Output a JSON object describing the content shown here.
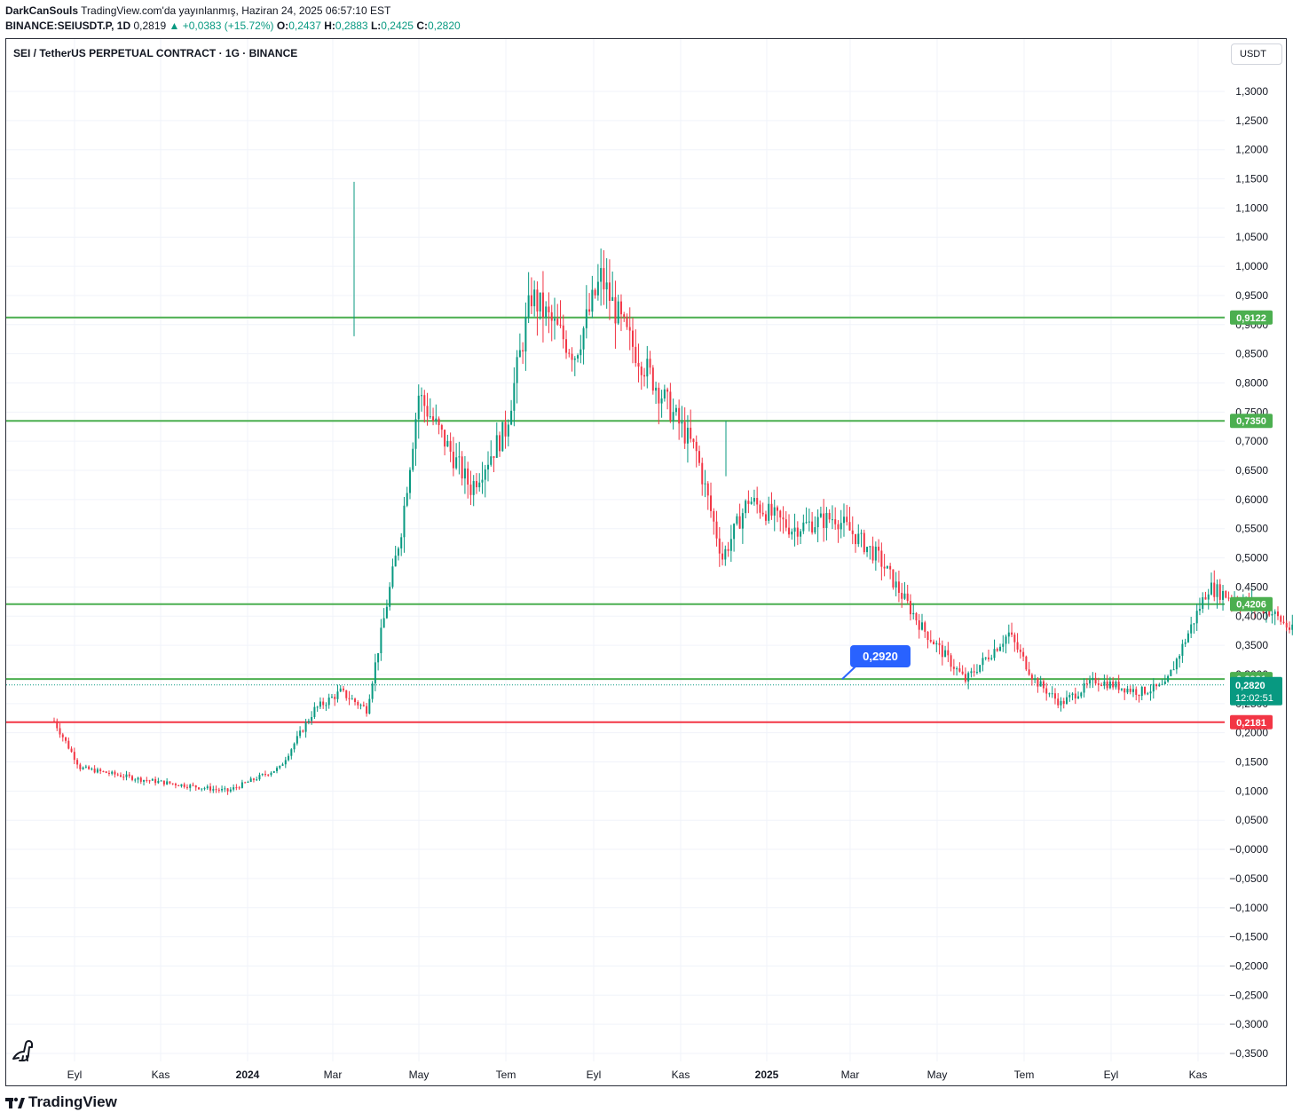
{
  "header": {
    "author": "DarkCanSouls",
    "published": "TradingView.com'da yayınlanmış, Haziran 24, 2025 06:57:10 EST",
    "symbol_line": "BINANCE:SEIUSDT.P, 1D",
    "price": "0,2819",
    "change": "▲ +0,0383 (+15.72%)",
    "o_label": "O:",
    "o": "0,2437",
    "h_label": "H:",
    "h": "0,2883",
    "l_label": "L:",
    "l": "0,2425",
    "c_label": "C:",
    "c": "0,2820"
  },
  "legend": {
    "title": "SEI / TetherUS PERPETUAL CONTRACT · 1G · BINANCE"
  },
  "currency_button": "USDT",
  "footer": {
    "brand": "TradingView"
  },
  "colors": {
    "up": "#089981",
    "down": "#f23645",
    "level_green": "#4caf50",
    "level_red": "#f23645",
    "callout": "#2962ff",
    "projection": "#9598a1"
  },
  "chart_data": {
    "type": "candlestick",
    "title": "SEI / TetherUS PERPETUAL CONTRACT · 1G · BINANCE",
    "ylim": [
      -0.35,
      1.3
    ],
    "y_ticks": [
      {
        "v": 1.3,
        "label": "1,3000"
      },
      {
        "v": 1.25,
        "label": "1,2500"
      },
      {
        "v": 1.2,
        "label": "1,2000"
      },
      {
        "v": 1.15,
        "label": "1,1500"
      },
      {
        "v": 1.1,
        "label": "1,1000"
      },
      {
        "v": 1.05,
        "label": "1,0500"
      },
      {
        "v": 1.0,
        "label": "1,0000"
      },
      {
        "v": 0.95,
        "label": "0,9500"
      },
      {
        "v": 0.9,
        "label": "0,9000"
      },
      {
        "v": 0.85,
        "label": "0,8500"
      },
      {
        "v": 0.8,
        "label": "0,8000"
      },
      {
        "v": 0.75,
        "label": "0,7500"
      },
      {
        "v": 0.7,
        "label": "0,7000"
      },
      {
        "v": 0.65,
        "label": "0,6500"
      },
      {
        "v": 0.6,
        "label": "0,6000"
      },
      {
        "v": 0.55,
        "label": "0,5500"
      },
      {
        "v": 0.5,
        "label": "0,5000"
      },
      {
        "v": 0.45,
        "label": "0,4500"
      },
      {
        "v": 0.4,
        "label": "0,4000"
      },
      {
        "v": 0.35,
        "label": "0,3500"
      },
      {
        "v": 0.3,
        "label": "0,3000"
      },
      {
        "v": 0.25,
        "label": "0,2500"
      },
      {
        "v": 0.2,
        "label": "0,2000"
      },
      {
        "v": 0.15,
        "label": "0,1500"
      },
      {
        "v": 0.1,
        "label": "0,1000"
      },
      {
        "v": 0.05,
        "label": "0,0500"
      },
      {
        "v": 0.0,
        "label": "−0,0000"
      },
      {
        "v": -0.05,
        "label": "−0,0500"
      },
      {
        "v": -0.1,
        "label": "−0,1000"
      },
      {
        "v": -0.15,
        "label": "−0,1500"
      },
      {
        "v": -0.2,
        "label": "−0,2000"
      },
      {
        "v": -0.25,
        "label": "−0,2500"
      },
      {
        "v": -0.3,
        "label": "−0,3000"
      },
      {
        "v": -0.35,
        "label": "−0,3500"
      }
    ],
    "x_ticks": [
      {
        "label": "Eyl",
        "bold": false
      },
      {
        "label": "Kas",
        "bold": false
      },
      {
        "label": "2024",
        "bold": true
      },
      {
        "label": "Mar",
        "bold": false
      },
      {
        "label": "May",
        "bold": false
      },
      {
        "label": "Tem",
        "bold": false
      },
      {
        "label": "Eyl",
        "bold": false
      },
      {
        "label": "Kas",
        "bold": false
      },
      {
        "label": "2025",
        "bold": true
      },
      {
        "label": "Mar",
        "bold": false
      },
      {
        "label": "May",
        "bold": false
      },
      {
        "label": "Tem",
        "bold": false
      },
      {
        "label": "Eyl",
        "bold": false
      },
      {
        "label": "Kas",
        "bold": false
      }
    ],
    "levels": [
      {
        "value": 0.9122,
        "label": "0,9122",
        "color": "#4caf50"
      },
      {
        "value": 0.735,
        "label": "0,7350",
        "color": "#4caf50"
      },
      {
        "value": 0.4206,
        "label": "0,4206",
        "color": "#4caf50"
      },
      {
        "value": 0.2921,
        "label": "0,2921",
        "color": "#4caf50"
      },
      {
        "value": 0.2181,
        "label": "0,2181",
        "color": "#f23645"
      }
    ],
    "last_price": {
      "value": 0.282,
      "label": "0,2820",
      "countdown": "12:02:51"
    },
    "callout": {
      "label": "0,2920",
      "value": 0.292
    },
    "price_path": [
      {
        "m": 0.0,
        "p": 0.22
      },
      {
        "m": 0.3,
        "p": 0.14
      },
      {
        "m": 1.0,
        "p": 0.12
      },
      {
        "m": 2.0,
        "p": 0.1
      },
      {
        "m": 2.6,
        "p": 0.14
      },
      {
        "m": 3.0,
        "p": 0.24
      },
      {
        "m": 3.3,
        "p": 0.27
      },
      {
        "m": 3.6,
        "p": 0.24
      },
      {
        "m": 4.0,
        "p": 0.55
      },
      {
        "m": 4.2,
        "p": 0.78
      },
      {
        "m": 4.5,
        "p": 0.7
      },
      {
        "m": 4.8,
        "p": 0.62
      },
      {
        "m": 5.2,
        "p": 0.72
      },
      {
        "m": 5.5,
        "p": 0.95
      },
      {
        "m": 6.0,
        "p": 0.85
      },
      {
        "m": 6.3,
        "p": 0.98
      },
      {
        "m": 6.6,
        "p": 0.88
      },
      {
        "m": 7.0,
        "p": 0.78
      },
      {
        "m": 7.4,
        "p": 0.68
      },
      {
        "m": 7.7,
        "p": 0.5
      },
      {
        "m": 8.0,
        "p": 0.6
      },
      {
        "m": 8.5,
        "p": 0.55
      },
      {
        "m": 9.0,
        "p": 0.57
      },
      {
        "m": 9.5,
        "p": 0.5
      },
      {
        "m": 10.0,
        "p": 0.38
      },
      {
        "m": 10.5,
        "p": 0.29
      },
      {
        "m": 11.0,
        "p": 0.37
      },
      {
        "m": 11.3,
        "p": 0.29
      },
      {
        "m": 11.6,
        "p": 0.25
      },
      {
        "m": 12.0,
        "p": 0.29
      },
      {
        "m": 12.5,
        "p": 0.27
      },
      {
        "m": 12.8,
        "p": 0.28
      },
      {
        "m": 13.3,
        "p": 0.45
      },
      {
        "m": 13.6,
        "p": 0.43
      },
      {
        "m": 14.0,
        "p": 0.41
      },
      {
        "m": 14.3,
        "p": 0.37
      },
      {
        "m": 14.6,
        "p": 0.44
      },
      {
        "m": 15.0,
        "p": 0.5
      },
      {
        "m": 15.3,
        "p": 0.69
      },
      {
        "m": 15.6,
        "p": 0.66
      },
      {
        "m": 15.8,
        "p": 0.58
      },
      {
        "m": 16.2,
        "p": 0.45
      },
      {
        "m": 16.6,
        "p": 0.44
      },
      {
        "m": 17.0,
        "p": 0.39
      },
      {
        "m": 17.4,
        "p": 0.31
      },
      {
        "m": 17.7,
        "p": 0.24
      },
      {
        "m": 18.0,
        "p": 0.27
      },
      {
        "m": 18.3,
        "p": 0.24
      },
      {
        "m": 18.7,
        "p": 0.19
      },
      {
        "m": 19.2,
        "p": 0.2
      },
      {
        "m": 19.6,
        "p": 0.15
      },
      {
        "m": 20.0,
        "p": 0.19
      },
      {
        "m": 20.4,
        "p": 0.22
      },
      {
        "m": 20.7,
        "p": 0.26
      },
      {
        "m": 21.0,
        "p": 0.22
      },
      {
        "m": 21.3,
        "p": 0.2
      },
      {
        "m": 21.7,
        "p": 0.19
      },
      {
        "m": 22.0,
        "p": 0.18
      },
      {
        "m": 22.3,
        "p": 0.22
      },
      {
        "m": 22.45,
        "p": 0.28
      }
    ],
    "projection": [
      {
        "m": 22.45,
        "p": 0.29
      },
      {
        "m": 22.75,
        "p": 0.325
      },
      {
        "m": 23.05,
        "p": 0.29
      },
      {
        "m": 24.05,
        "p": 0.465
      },
      {
        "m": 24.6,
        "p": 0.42
      },
      {
        "m": 24.7,
        "p": 0.44
      }
    ]
  }
}
